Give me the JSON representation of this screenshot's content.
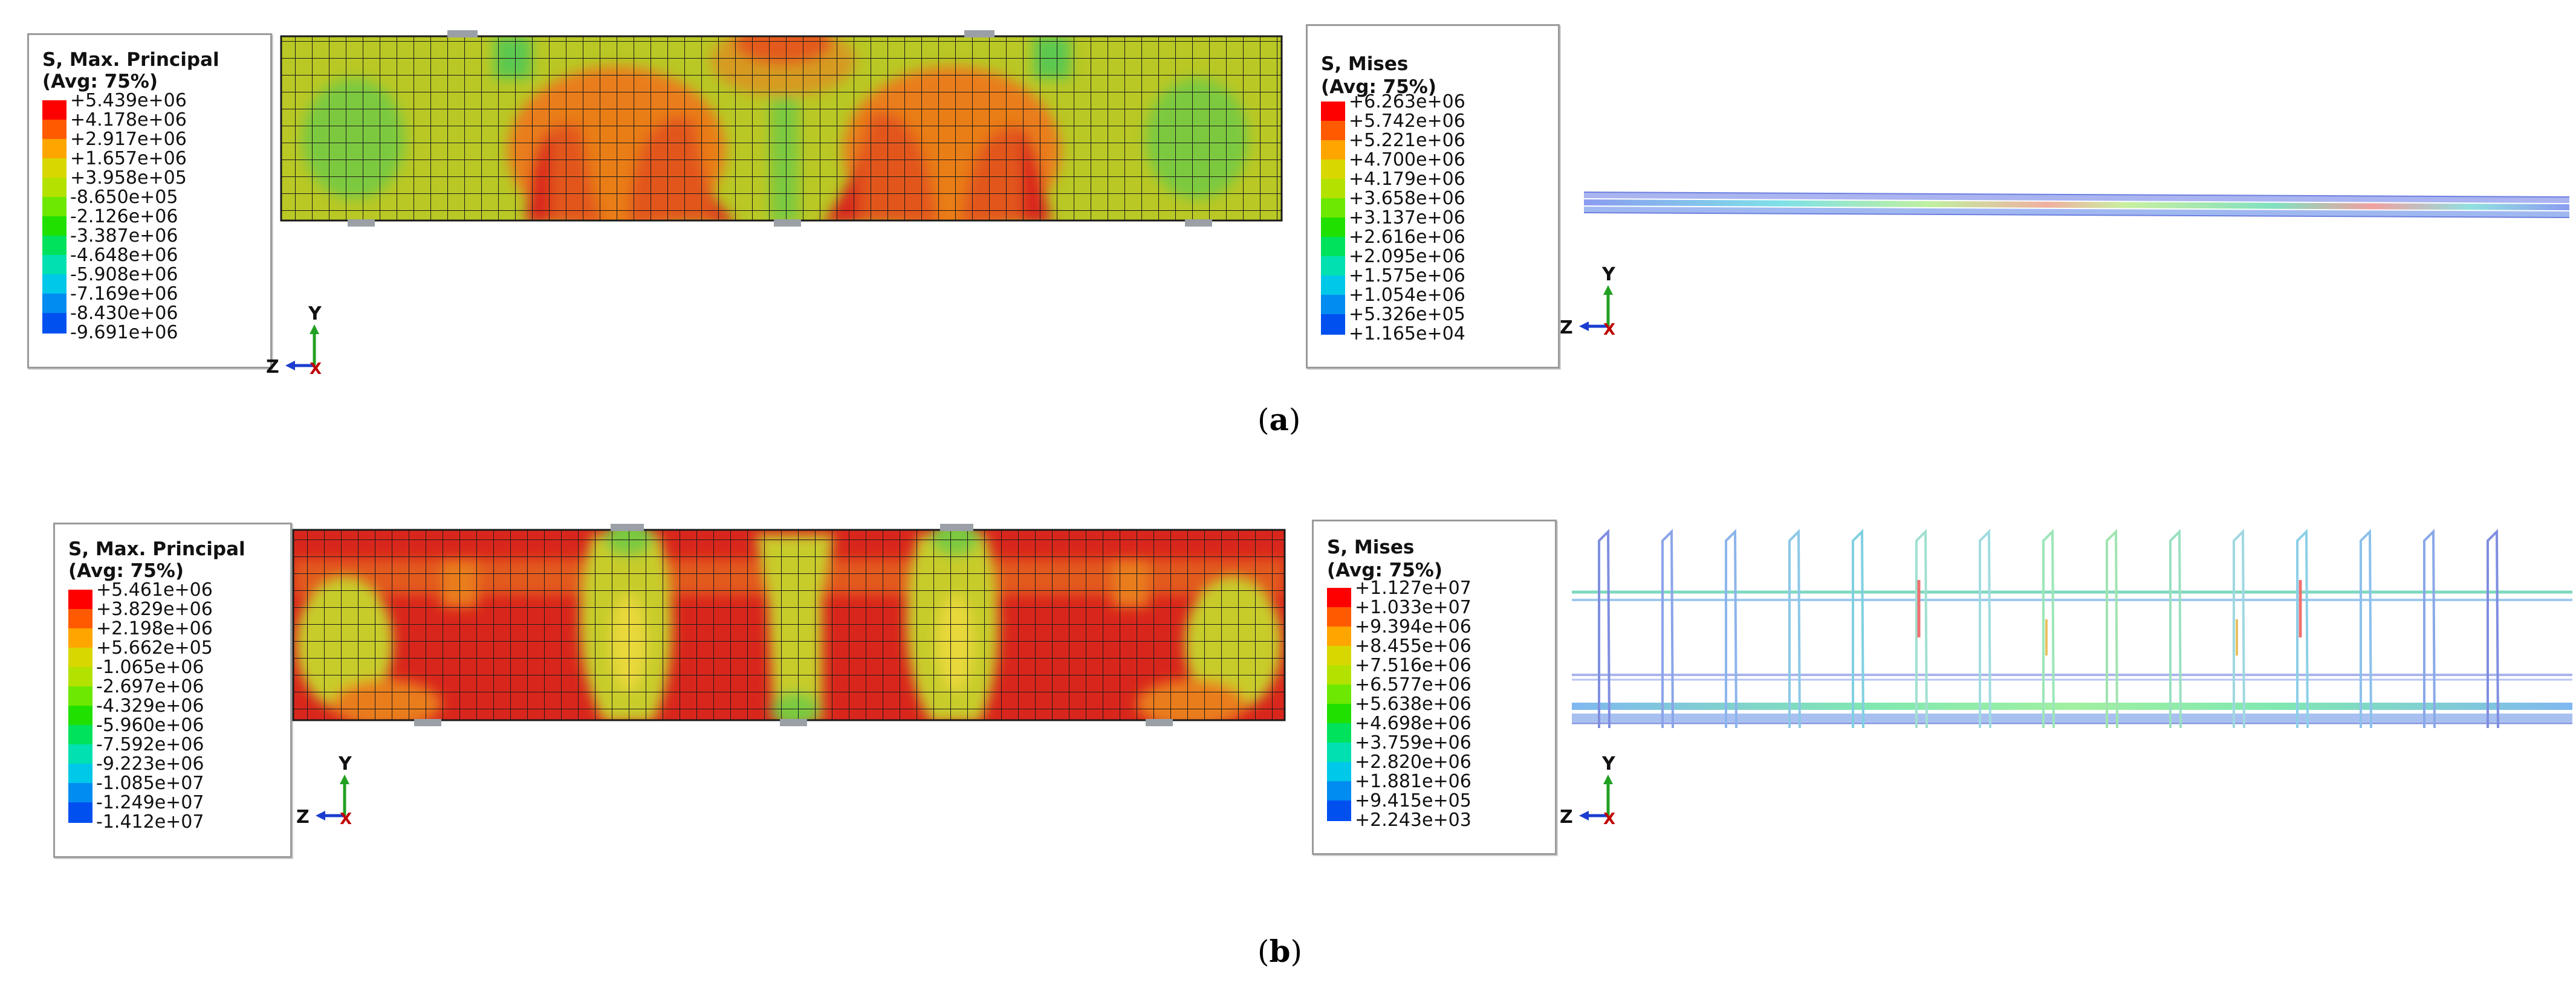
{
  "panels": [
    {
      "id": "a",
      "caption_open": "(",
      "caption_letter": "a",
      "caption_close": ")",
      "principal_legend": {
        "title1": "S, Max. Principal",
        "title2": "(Avg: 75%)",
        "values": [
          "+5.439e+06",
          "+4.178e+06",
          "+2.917e+06",
          "+1.657e+06",
          "+3.958e+05",
          "-8.650e+05",
          "-2.126e+06",
          "-3.387e+06",
          "-4.648e+06",
          "-5.908e+06",
          "-7.169e+06",
          "-8.430e+06",
          "-9.691e+06"
        ]
      },
      "mises_legend": {
        "title1": "S, Mises",
        "title2": "(Avg: 75%)",
        "values": [
          "+6.263e+06",
          "+5.742e+06",
          "+5.221e+06",
          "+4.700e+06",
          "+4.179e+06",
          "+3.658e+06",
          "+3.137e+06",
          "+2.616e+06",
          "+2.095e+06",
          "+1.575e+06",
          "+1.054e+06",
          "+5.326e+05",
          "+1.165e+04"
        ]
      }
    },
    {
      "id": "b",
      "caption_open": "(",
      "caption_letter": "b",
      "caption_close": ")",
      "principal_legend": {
        "title1": "S, Max. Principal",
        "title2": "(Avg: 75%)",
        "values": [
          "+5.461e+06",
          "+3.829e+06",
          "+2.198e+06",
          "+5.662e+05",
          "-1.065e+06",
          "-2.697e+06",
          "-4.329e+06",
          "-5.960e+06",
          "-7.592e+06",
          "-9.223e+06",
          "-1.085e+07",
          "-1.249e+07",
          "-1.412e+07"
        ]
      },
      "mises_legend": {
        "title1": "S, Mises",
        "title2": "(Avg: 75%)",
        "values": [
          "+1.127e+07",
          "+1.033e+07",
          "+9.394e+06",
          "+8.455e+06",
          "+7.516e+06",
          "+6.577e+06",
          "+5.638e+06",
          "+4.698e+06",
          "+3.759e+06",
          "+2.820e+06",
          "+1.881e+06",
          "+9.415e+05",
          "+2.243e+03"
        ]
      }
    }
  ],
  "axes_labels": {
    "y": "Y",
    "z": "Z",
    "x": "X"
  },
  "colors": {
    "scale": [
      "#ff0000",
      "#ff5a00",
      "#ffa500",
      "#d8d800",
      "#b4e200",
      "#6de800",
      "#20e000",
      "#00e25c",
      "#00e0b0",
      "#00c8e8",
      "#008cf0",
      "#0050f0",
      "#0000ff"
    ],
    "beam_red": "#d9261c",
    "beam_orange": "#e97d1a",
    "beam_yellow": "#c8cc2a",
    "beam_green": "#82c63c",
    "grid_line": "#1a1a1a"
  }
}
